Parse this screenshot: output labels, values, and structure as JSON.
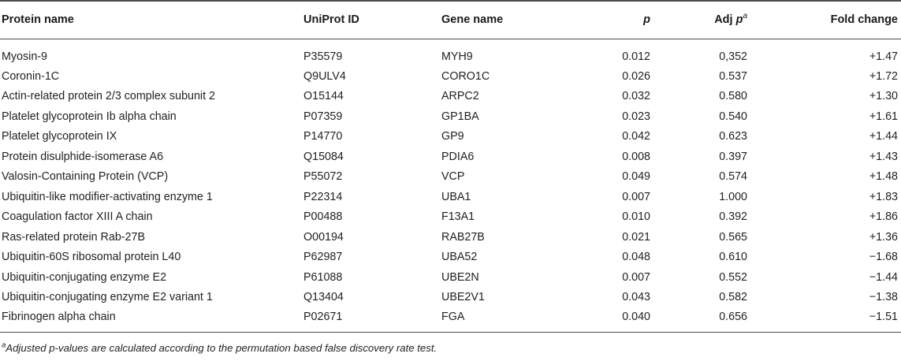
{
  "table": {
    "headers": {
      "protein_name": "Protein name",
      "uniprot_id": "UniProt ID",
      "gene_name": "Gene name",
      "p": "p",
      "adj_p_prefix": "Adj",
      "adj_p_italic": "p",
      "adj_p_mark": "a",
      "fold_change": "Fold change"
    },
    "rows": [
      {
        "protein": "Myosin-9",
        "uniprot": "P35579",
        "gene": "MYH9",
        "p": "0.012",
        "adj_p": "0,352",
        "fold_change": "+1.47"
      },
      {
        "protein": "Coronin-1C",
        "uniprot": "Q9ULV4",
        "gene": "CORO1C",
        "p": "0.026",
        "adj_p": "0.537",
        "fold_change": "+1.72"
      },
      {
        "protein": "Actin-related protein 2/3 complex subunit 2",
        "uniprot": "O15144",
        "gene": "ARPC2",
        "p": "0.032",
        "adj_p": "0.580",
        "fold_change": "+1.30"
      },
      {
        "protein": "Platelet glycoprotein Ib alpha chain",
        "uniprot": "P07359",
        "gene": "GP1BA",
        "p": "0.023",
        "adj_p": "0.540",
        "fold_change": "+1.61"
      },
      {
        "protein": "Platelet glycoprotein IX",
        "uniprot": "P14770",
        "gene": "GP9",
        "p": "0.042",
        "adj_p": "0.623",
        "fold_change": "+1.44"
      },
      {
        "protein": "Protein disulphide-isomerase A6",
        "uniprot": "Q15084",
        "gene": "PDIA6",
        "p": "0.008",
        "adj_p": "0.397",
        "fold_change": "+1.43"
      },
      {
        "protein": "Valosin-Containing Protein (VCP)",
        "uniprot": "P55072",
        "gene": "VCP",
        "p": "0.049",
        "adj_p": "0.574",
        "fold_change": "+1.48"
      },
      {
        "protein": "Ubiquitin-like modifier-activating enzyme 1",
        "uniprot": "P22314",
        "gene": "UBA1",
        "p": "0.007",
        "adj_p": "1.000",
        "fold_change": "+1.83"
      },
      {
        "protein": "Coagulation factor XIII A chain",
        "uniprot": "P00488",
        "gene": "F13A1",
        "p": "0.010",
        "adj_p": "0.392",
        "fold_change": "+1.86"
      },
      {
        "protein": "Ras-related protein Rab-27B",
        "uniprot": "O00194",
        "gene": "RAB27B",
        "p": "0.021",
        "adj_p": "0.565",
        "fold_change": "+1.36"
      },
      {
        "protein": "Ubiquitin-60S ribosomal protein L40",
        "uniprot": "P62987",
        "gene": "UBA52",
        "p": "0.048",
        "adj_p": "0.610",
        "fold_change": "−1.68"
      },
      {
        "protein": "Ubiquitin-conjugating enzyme E2",
        "uniprot": "P61088",
        "gene": "UBE2N",
        "p": "0.007",
        "adj_p": "0.552",
        "fold_change": "−1.44"
      },
      {
        "protein": "Ubiquitin-conjugating enzyme E2 variant 1",
        "uniprot": "Q13404",
        "gene": "UBE2V1",
        "p": "0.043",
        "adj_p": "0.582",
        "fold_change": "−1.38"
      },
      {
        "protein": "Fibrinogen alpha chain",
        "uniprot": "P02671",
        "gene": "FGA",
        "p": "0.040",
        "adj_p": "0.656",
        "fold_change": "−1.51"
      }
    ]
  },
  "footnote": {
    "mark": "a",
    "text": "Adjusted p-values are calculated according to the permutation based false discovery rate test."
  }
}
